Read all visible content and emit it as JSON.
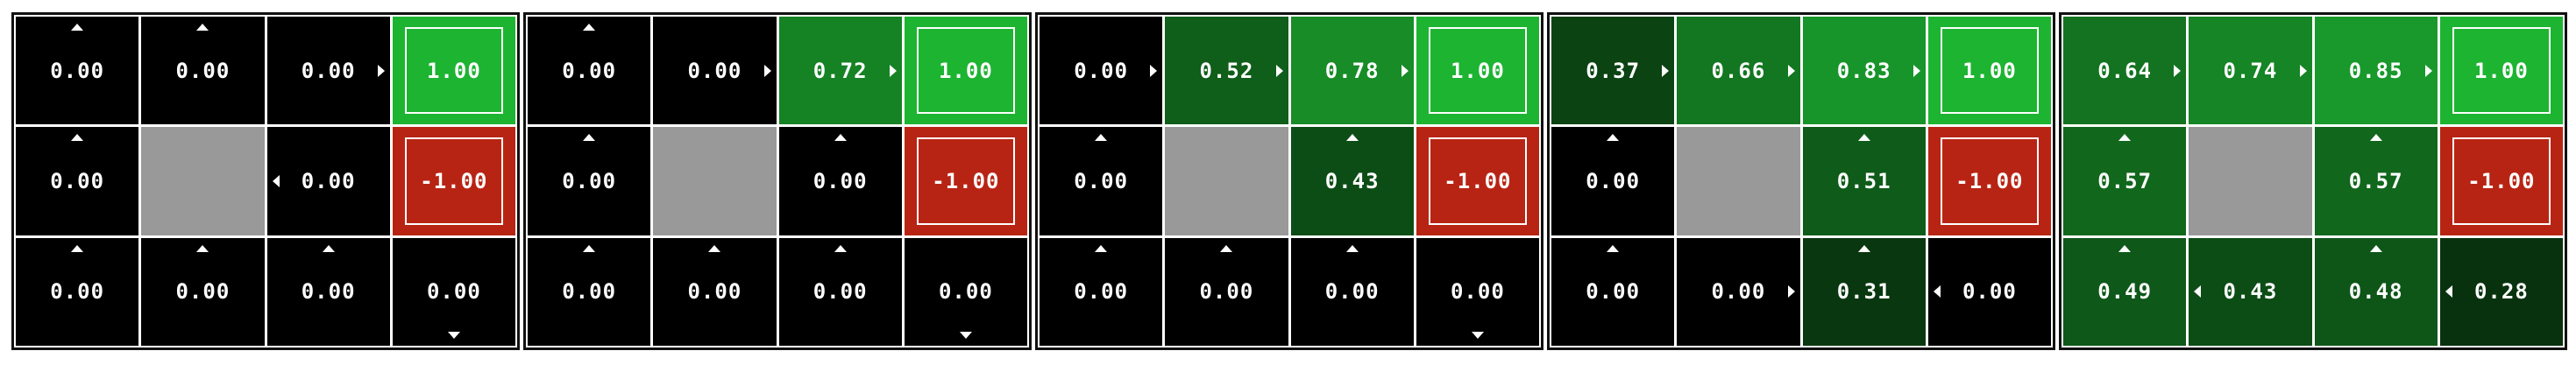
{
  "colors": {
    "goal": "#1db432",
    "pit": "#b82413",
    "wall": "#999999",
    "zero": "#000000",
    "positive_full": "#1db432"
  },
  "grids": [
    {
      "cells": [
        [
          {
            "v": "0.00",
            "a": "up"
          },
          {
            "v": "0.00",
            "a": "up"
          },
          {
            "v": "0.00",
            "a": "right"
          },
          {
            "v": "1.00",
            "t": "goal"
          }
        ],
        [
          {
            "v": "0.00",
            "a": "up"
          },
          {
            "t": "wall"
          },
          {
            "v": "0.00",
            "a": "left"
          },
          {
            "v": "-1.00",
            "t": "pit"
          }
        ],
        [
          {
            "v": "0.00",
            "a": "up"
          },
          {
            "v": "0.00",
            "a": "up"
          },
          {
            "v": "0.00",
            "a": "up"
          },
          {
            "v": "0.00",
            "a": "down"
          }
        ]
      ]
    },
    {
      "cells": [
        [
          {
            "v": "0.00",
            "a": "up"
          },
          {
            "v": "0.00",
            "a": "right"
          },
          {
            "v": "0.72",
            "a": "right"
          },
          {
            "v": "1.00",
            "t": "goal"
          }
        ],
        [
          {
            "v": "0.00",
            "a": "up"
          },
          {
            "t": "wall"
          },
          {
            "v": "0.00",
            "a": "up"
          },
          {
            "v": "-1.00",
            "t": "pit"
          }
        ],
        [
          {
            "v": "0.00",
            "a": "up"
          },
          {
            "v": "0.00",
            "a": "up"
          },
          {
            "v": "0.00",
            "a": "up"
          },
          {
            "v": "0.00",
            "a": "down"
          }
        ]
      ]
    },
    {
      "cells": [
        [
          {
            "v": "0.00",
            "a": "right"
          },
          {
            "v": "0.52",
            "a": "right"
          },
          {
            "v": "0.78",
            "a": "right"
          },
          {
            "v": "1.00",
            "t": "goal"
          }
        ],
        [
          {
            "v": "0.00",
            "a": "up"
          },
          {
            "t": "wall"
          },
          {
            "v": "0.43",
            "a": "up"
          },
          {
            "v": "-1.00",
            "t": "pit"
          }
        ],
        [
          {
            "v": "0.00",
            "a": "up"
          },
          {
            "v": "0.00",
            "a": "up"
          },
          {
            "v": "0.00",
            "a": "up"
          },
          {
            "v": "0.00",
            "a": "down"
          }
        ]
      ]
    },
    {
      "cells": [
        [
          {
            "v": "0.37",
            "a": "right"
          },
          {
            "v": "0.66",
            "a": "right"
          },
          {
            "v": "0.83",
            "a": "right"
          },
          {
            "v": "1.00",
            "t": "goal"
          }
        ],
        [
          {
            "v": "0.00",
            "a": "up"
          },
          {
            "t": "wall"
          },
          {
            "v": "0.51",
            "a": "up"
          },
          {
            "v": "-1.00",
            "t": "pit"
          }
        ],
        [
          {
            "v": "0.00",
            "a": "up"
          },
          {
            "v": "0.00",
            "a": "right"
          },
          {
            "v": "0.31",
            "a": "up"
          },
          {
            "v": "0.00",
            "a": "left"
          }
        ]
      ]
    },
    {
      "cells": [
        [
          {
            "v": "0.64",
            "a": "right"
          },
          {
            "v": "0.74",
            "a": "right"
          },
          {
            "v": "0.85",
            "a": "right"
          },
          {
            "v": "1.00",
            "t": "goal"
          }
        ],
        [
          {
            "v": "0.57",
            "a": "up"
          },
          {
            "t": "wall"
          },
          {
            "v": "0.57",
            "a": "up"
          },
          {
            "v": "-1.00",
            "t": "pit"
          }
        ],
        [
          {
            "v": "0.49",
            "a": "up"
          },
          {
            "v": "0.43",
            "a": "left"
          },
          {
            "v": "0.48",
            "a": "up"
          },
          {
            "v": "0.28",
            "a": "left"
          }
        ]
      ]
    }
  ]
}
